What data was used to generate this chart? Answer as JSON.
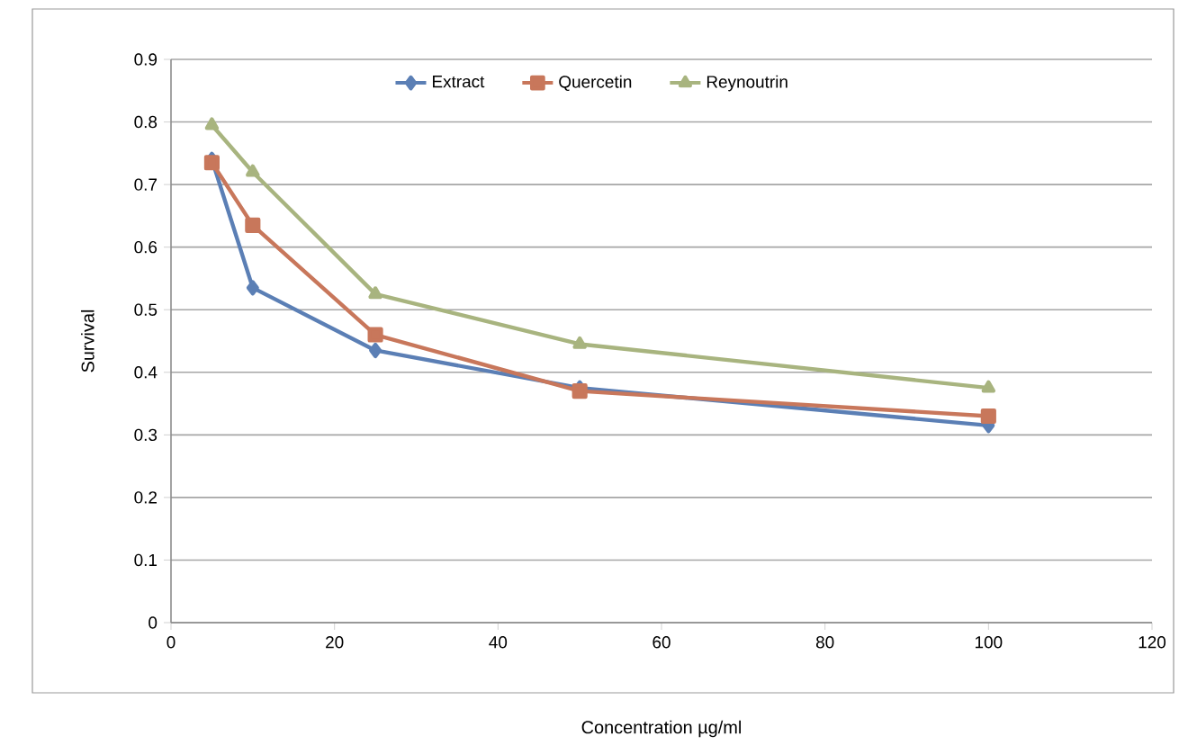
{
  "chart_data": {
    "type": "line",
    "xlabel": "Concentration µg/ml",
    "ylabel": "Survival",
    "x": [
      5,
      10,
      25,
      50,
      100
    ],
    "series": [
      {
        "name": "Extract",
        "color": "#5b7fb5",
        "marker": "diamond",
        "values": [
          0.74,
          0.535,
          0.435,
          0.375,
          0.315
        ]
      },
      {
        "name": "Quercetin",
        "color": "#c8775b",
        "marker": "square",
        "values": [
          0.735,
          0.635,
          0.46,
          0.37,
          0.33
        ]
      },
      {
        "name": "Reynoutrin",
        "color": "#a8b47f",
        "marker": "triangle",
        "values": [
          0.795,
          0.72,
          0.525,
          0.445,
          0.375
        ]
      }
    ],
    "xlim": [
      0,
      120
    ],
    "xticks": [
      0,
      20,
      40,
      60,
      80,
      100,
      120
    ],
    "ylim": [
      0,
      0.9
    ],
    "yticks": [
      0,
      0.1,
      0.2,
      0.3,
      0.4,
      0.5,
      0.6,
      0.7,
      0.8,
      0.9
    ],
    "grid": "y",
    "legend": "top",
    "line_style": "solid"
  }
}
